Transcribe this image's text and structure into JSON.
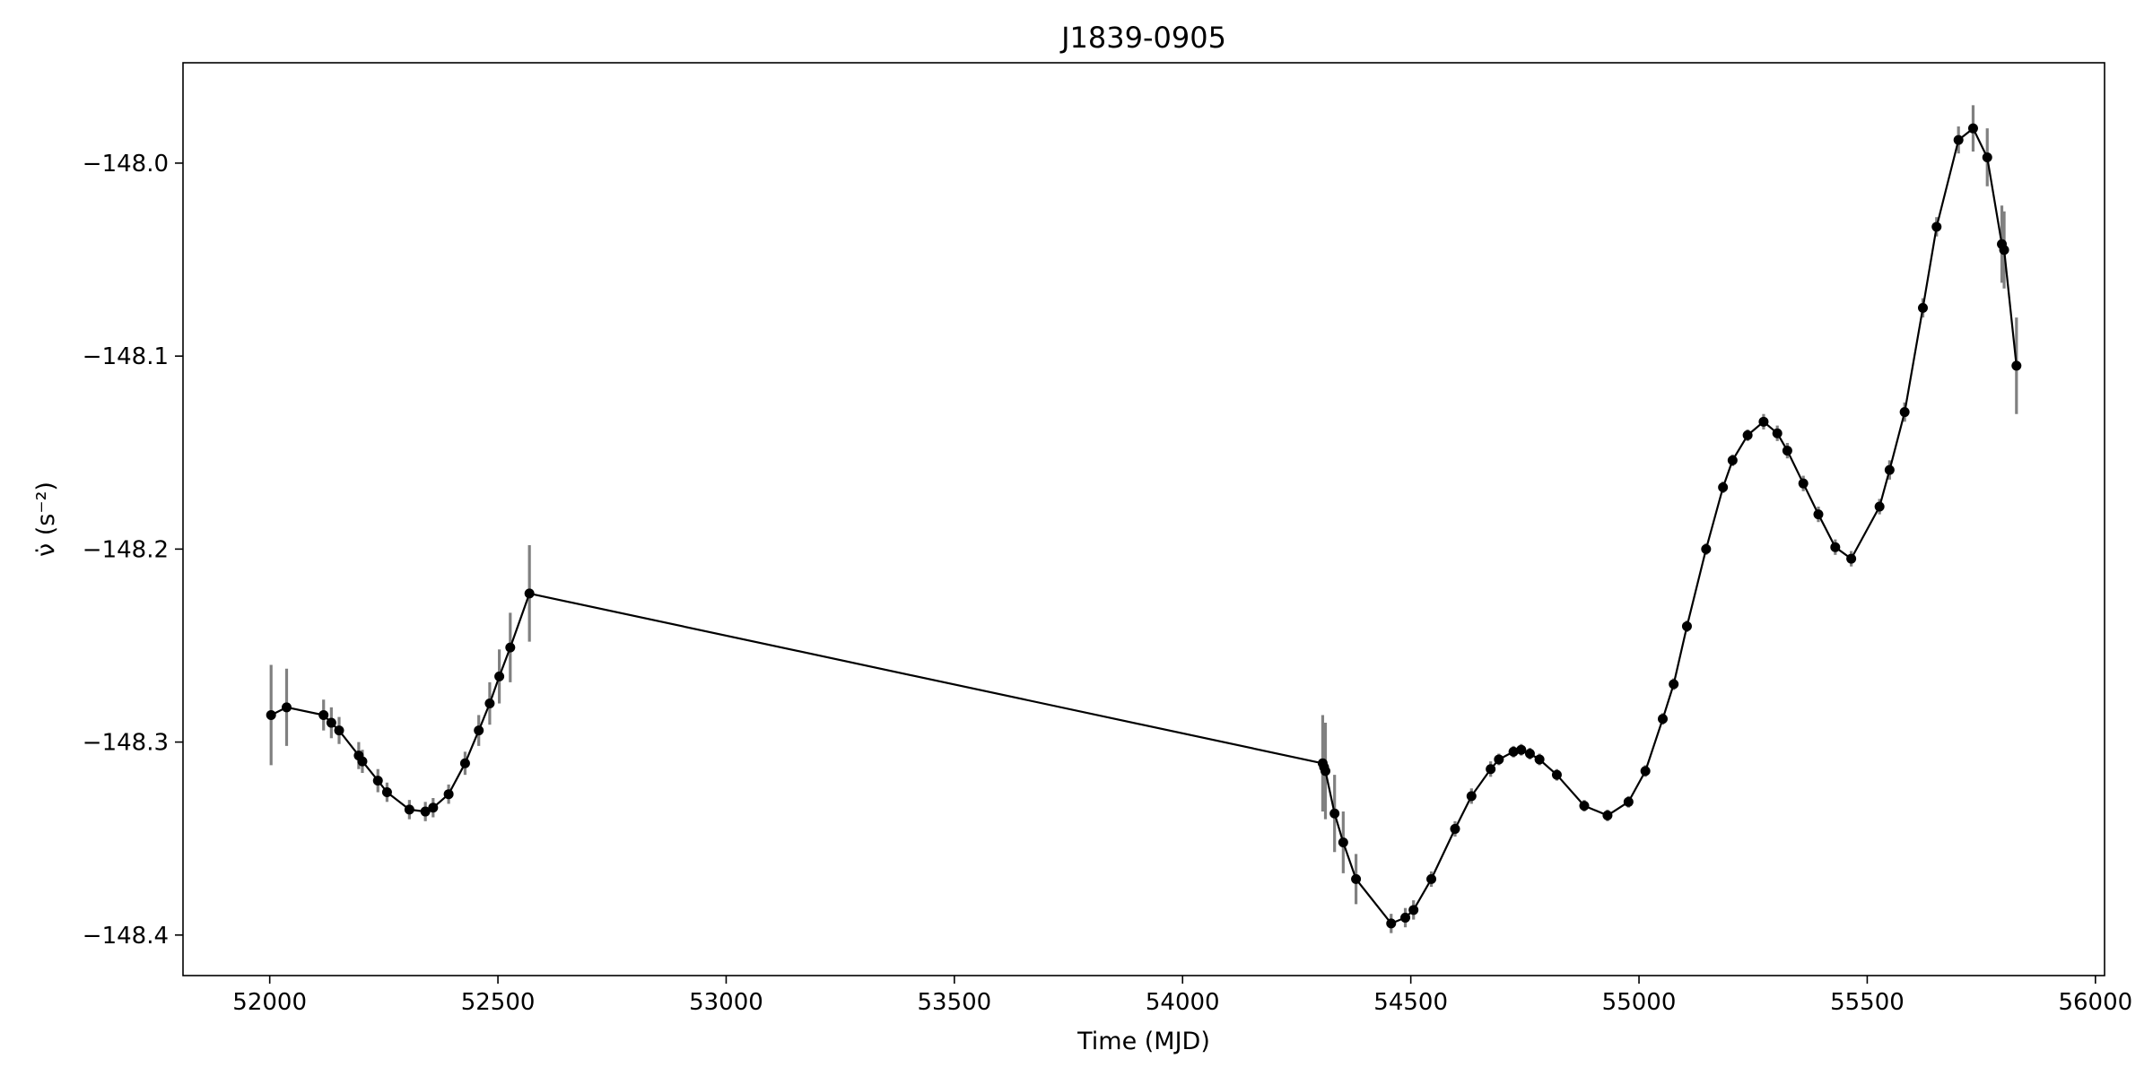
{
  "chart_data": {
    "type": "line",
    "title": "J1839-0905",
    "xlabel": "Time (MJD)",
    "ylabel": "ν̇ (s⁻²)",
    "xlim": [
      51810,
      56020
    ],
    "ylim": [
      -148.421,
      -147.948
    ],
    "xticks": [
      52000,
      52500,
      53000,
      53500,
      54000,
      54500,
      55000,
      55500,
      56000
    ],
    "xtick_labels": [
      "52000",
      "52500",
      "53000",
      "53500",
      "54000",
      "54500",
      "55000",
      "55500",
      "56000"
    ],
    "yticks": [
      -148.0,
      -148.1,
      -148.2,
      -148.3,
      -148.4
    ],
    "ytick_labels": [
      "−148.0",
      "−148.1",
      "−148.2",
      "−148.3",
      "−148.4"
    ],
    "grid": false,
    "legend": "none",
    "colors": {
      "line": "#000000",
      "marker": "#000000",
      "errorbar": "#808080",
      "frame": "#000000"
    },
    "series": [
      {
        "x": [
          52003,
          52037,
          52118,
          52135,
          52152,
          52195,
          52203,
          52237,
          52257,
          52306,
          52341,
          52358,
          52392,
          52428,
          52458,
          52482,
          52503,
          52527,
          52569,
          54307,
          54310,
          54313,
          54333,
          54352,
          54380,
          54457,
          54488,
          54506,
          54545,
          54597,
          54633,
          54675,
          54693,
          54725,
          54742,
          54761,
          54782,
          54820,
          54880,
          54931,
          54977,
          55014,
          55052,
          55076,
          55105,
          55147,
          55184,
          55205,
          55238,
          55273,
          55303,
          55325,
          55360,
          55393,
          55430,
          55465,
          55527,
          55549,
          55582,
          55622,
          55652,
          55700,
          55732,
          55763,
          55795,
          55800,
          55827
        ],
        "y": [
          -148.286,
          -148.282,
          -148.286,
          -148.29,
          -148.294,
          -148.307,
          -148.31,
          -148.32,
          -148.326,
          -148.335,
          -148.336,
          -148.334,
          -148.327,
          -148.311,
          -148.294,
          -148.28,
          -148.266,
          -148.251,
          -148.223,
          -148.311,
          -148.313,
          -148.315,
          -148.337,
          -148.352,
          -148.371,
          -148.394,
          -148.391,
          -148.387,
          -148.371,
          -148.345,
          -148.328,
          -148.314,
          -148.309,
          -148.305,
          -148.304,
          -148.306,
          -148.309,
          -148.317,
          -148.333,
          -148.338,
          -148.331,
          -148.315,
          -148.288,
          -148.27,
          -148.24,
          -148.2,
          -148.168,
          -148.154,
          -148.141,
          -148.134,
          -148.14,
          -148.149,
          -148.166,
          -148.182,
          -148.199,
          -148.205,
          -148.178,
          -148.159,
          -148.129,
          -148.075,
          -148.033,
          -147.988,
          -147.982,
          -147.997,
          -148.042,
          -148.045,
          -148.105
        ],
        "yerr": [
          0.026,
          0.02,
          0.008,
          0.008,
          0.007,
          0.007,
          0.006,
          0.006,
          0.005,
          0.005,
          0.005,
          0.005,
          0.005,
          0.006,
          0.008,
          0.011,
          0.014,
          0.018,
          0.025,
          0.025,
          0.022,
          0.025,
          0.02,
          0.016,
          0.013,
          0.005,
          0.005,
          0.005,
          0.004,
          0.004,
          0.004,
          0.004,
          0.003,
          0.003,
          0.003,
          0.003,
          0.003,
          0.003,
          0.003,
          0.003,
          0.003,
          0.003,
          0.003,
          0.003,
          0.003,
          0.003,
          0.003,
          0.003,
          0.003,
          0.004,
          0.004,
          0.004,
          0.004,
          0.004,
          0.004,
          0.004,
          0.004,
          0.005,
          0.005,
          0.005,
          0.005,
          0.007,
          0.012,
          0.015,
          0.02,
          0.02,
          0.025
        ]
      }
    ]
  }
}
